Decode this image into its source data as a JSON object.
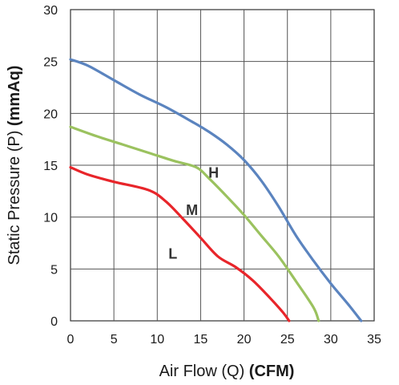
{
  "chart_data": {
    "type": "line",
    "xlabel": "Air Flow (Q)",
    "xlabel_unit": "(CFM)",
    "ylabel": "Static Pressure (P)",
    "ylabel_unit": "(mmAq)",
    "xlim": [
      0,
      35
    ],
    "ylim": [
      0,
      30
    ],
    "x_ticks": [
      "0",
      "5",
      "10",
      "15",
      "20",
      "25",
      "30",
      "35"
    ],
    "y_ticks": [
      "0",
      "5",
      "10",
      "15",
      "20",
      "25",
      "30"
    ],
    "grid": true,
    "series": [
      {
        "name": "H",
        "color": "#5b84bf",
        "label_at": [
          16.5,
          13.8
        ],
        "points": [
          [
            0,
            25.2
          ],
          [
            2,
            24.6
          ],
          [
            5,
            23.2
          ],
          [
            8,
            21.8
          ],
          [
            11,
            20.6
          ],
          [
            14,
            19.2
          ],
          [
            16,
            18.2
          ],
          [
            18,
            17.0
          ],
          [
            20,
            15.5
          ],
          [
            22,
            13.5
          ],
          [
            24,
            11.0
          ],
          [
            26,
            8.2
          ],
          [
            28,
            5.8
          ],
          [
            30,
            3.6
          ],
          [
            32,
            1.6
          ],
          [
            33.5,
            0
          ]
        ]
      },
      {
        "name": "M",
        "color": "#9bc25f",
        "label_at": [
          14.0,
          10.2
        ],
        "points": [
          [
            0,
            18.7
          ],
          [
            3,
            17.8
          ],
          [
            6,
            17.0
          ],
          [
            9,
            16.2
          ],
          [
            12,
            15.4
          ],
          [
            14.5,
            14.8
          ],
          [
            16,
            13.7
          ],
          [
            18,
            12.0
          ],
          [
            20,
            10.2
          ],
          [
            22,
            8.2
          ],
          [
            24,
            6.2
          ],
          [
            26,
            3.8
          ],
          [
            28,
            1.3
          ],
          [
            28.6,
            0
          ]
        ]
      },
      {
        "name": "L",
        "color": "#e8252a",
        "label_at": [
          11.8,
          6.0
        ],
        "points": [
          [
            0,
            14.8
          ],
          [
            2,
            14.1
          ],
          [
            5,
            13.4
          ],
          [
            9,
            12.6
          ],
          [
            11,
            11.5
          ],
          [
            13,
            9.8
          ],
          [
            15,
            8.0
          ],
          [
            17,
            6.2
          ],
          [
            19,
            5.2
          ],
          [
            21,
            3.9
          ],
          [
            23,
            2.2
          ],
          [
            24.5,
            0.8
          ],
          [
            25.2,
            0
          ]
        ]
      }
    ]
  }
}
